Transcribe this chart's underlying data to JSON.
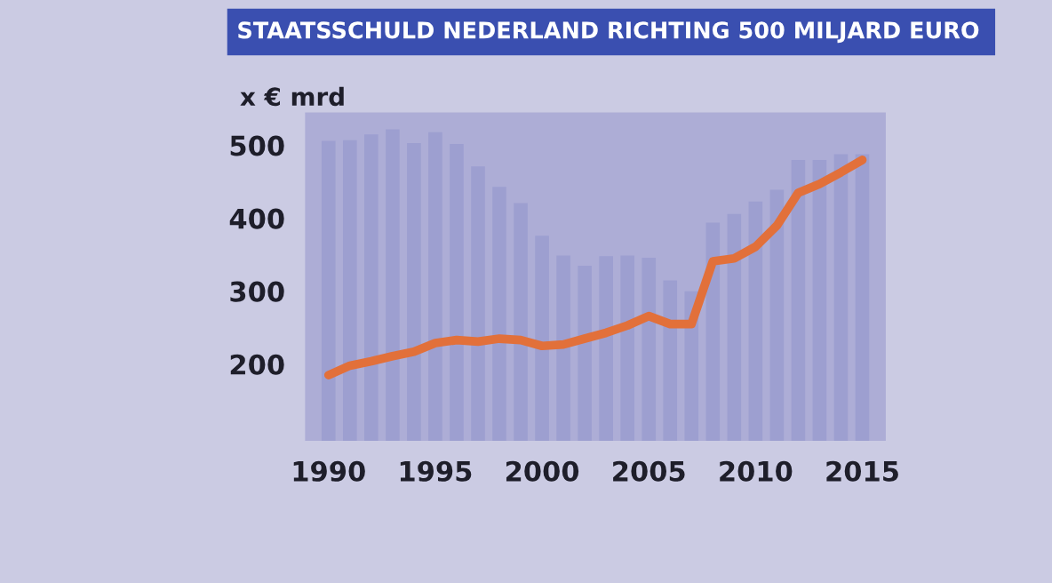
{
  "chart_data": {
    "type": "bar",
    "title": "STAATSSCHULD NEDERLAND RICHTING 500 MILJARD EURO",
    "ylabel": "x € mrd",
    "x": [
      1990,
      1991,
      1992,
      1993,
      1994,
      1995,
      1996,
      1997,
      1998,
      1999,
      2000,
      2001,
      2002,
      2003,
      2004,
      2005,
      2006,
      2007,
      2008,
      2009,
      2010,
      2011,
      2012,
      2013,
      2014,
      2015
    ],
    "series": [
      {
        "color": "#9d9fd0",
        "values": [
          506,
          507,
          515,
          522,
          503,
          518,
          502,
          471,
          443,
          421,
          376,
          349,
          335,
          348,
          349,
          346,
          315,
          300,
          394,
          406,
          423,
          439,
          480,
          480,
          488,
          488
        ]
      },
      {
        "type": "line",
        "color": "#e2703a",
        "values": [
          185,
          198,
          204,
          211,
          217,
          229,
          233,
          231,
          235,
          233,
          225,
          227,
          235,
          243,
          253,
          266,
          255,
          255,
          341,
          345,
          361,
          390,
          435,
          447,
          463,
          480
        ]
      }
    ],
    "xlim": [
      1988.9,
      2016.1
    ],
    "ylim": [
      95,
      545
    ],
    "xticks": [
      1990,
      1995,
      2000,
      2005,
      2010,
      2015
    ],
    "yticks": [
      200,
      300,
      400,
      500
    ],
    "grid": false,
    "legend": false
  }
}
